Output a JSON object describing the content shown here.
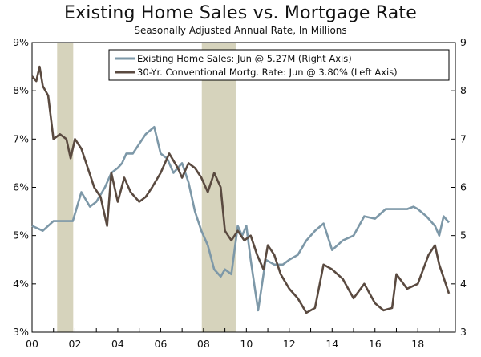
{
  "chart_data": {
    "type": "line",
    "title": "Existing Home Sales vs. Mortgage Rate",
    "subtitle": "Seasonally Adjusted Annual Rate, In Millions",
    "x_tick_labels": [
      "00",
      "02",
      "04",
      "06",
      "08",
      "10",
      "12",
      "14",
      "16",
      "18"
    ],
    "x_range": [
      2000.0,
      2019.75
    ],
    "left_axis": {
      "range": [
        3,
        9
      ],
      "ticks": [
        "3%",
        "4%",
        "5%",
        "6%",
        "7%",
        "8%",
        "9%"
      ]
    },
    "right_axis": {
      "range": [
        3,
        9
      ],
      "ticks": [
        "3",
        "4",
        "5",
        "6",
        "7",
        "8",
        "9"
      ]
    },
    "recessions": [
      [
        2001.17,
        2001.92
      ],
      [
        2007.92,
        2009.5
      ]
    ],
    "series": [
      {
        "name": "Existing Home Sales: Jun @ 5.27M (Right Axis)",
        "axis": "right",
        "color": "#7d98a8",
        "points": [
          [
            2000.0,
            5.2
          ],
          [
            2000.5,
            5.1
          ],
          [
            2001.0,
            5.3
          ],
          [
            2001.5,
            5.3
          ],
          [
            2001.9,
            5.3
          ],
          [
            2002.3,
            5.9
          ],
          [
            2002.7,
            5.6
          ],
          [
            2003.0,
            5.7
          ],
          [
            2003.4,
            6.0
          ],
          [
            2003.7,
            6.3
          ],
          [
            2004.0,
            6.4
          ],
          [
            2004.2,
            6.5
          ],
          [
            2004.4,
            6.7
          ],
          [
            2004.7,
            6.7
          ],
          [
            2005.0,
            6.9
          ],
          [
            2005.3,
            7.1
          ],
          [
            2005.7,
            7.25
          ],
          [
            2006.0,
            6.7
          ],
          [
            2006.3,
            6.6
          ],
          [
            2006.6,
            6.3
          ],
          [
            2007.0,
            6.5
          ],
          [
            2007.3,
            6.1
          ],
          [
            2007.6,
            5.5
          ],
          [
            2007.9,
            5.1
          ],
          [
            2008.2,
            4.8
          ],
          [
            2008.5,
            4.3
          ],
          [
            2008.8,
            4.15
          ],
          [
            2009.0,
            4.3
          ],
          [
            2009.3,
            4.2
          ],
          [
            2009.6,
            5.2
          ],
          [
            2009.8,
            5.0
          ],
          [
            2010.0,
            5.2
          ],
          [
            2010.2,
            4.5
          ],
          [
            2010.4,
            3.9
          ],
          [
            2010.55,
            3.45
          ],
          [
            2010.9,
            4.5
          ],
          [
            2011.3,
            4.4
          ],
          [
            2011.7,
            4.4
          ],
          [
            2012.0,
            4.5
          ],
          [
            2012.4,
            4.6
          ],
          [
            2012.8,
            4.9
          ],
          [
            2013.2,
            5.1
          ],
          [
            2013.6,
            5.25
          ],
          [
            2014.0,
            4.7
          ],
          [
            2014.5,
            4.9
          ],
          [
            2015.0,
            5.0
          ],
          [
            2015.5,
            5.4
          ],
          [
            2016.0,
            5.35
          ],
          [
            2016.5,
            5.55
          ],
          [
            2017.0,
            5.55
          ],
          [
            2017.5,
            5.55
          ],
          [
            2017.8,
            5.6
          ],
          [
            2018.0,
            5.55
          ],
          [
            2018.4,
            5.4
          ],
          [
            2018.8,
            5.2
          ],
          [
            2019.0,
            5.0
          ],
          [
            2019.2,
            5.4
          ],
          [
            2019.45,
            5.27
          ]
        ]
      },
      {
        "name": "30-Yr. Conventional Mortg. Rate: Jun @ 3.80% (Left Axis)",
        "axis": "left",
        "color": "#5a4a40",
        "points": [
          [
            2000.0,
            8.3
          ],
          [
            2000.2,
            8.2
          ],
          [
            2000.35,
            8.5
          ],
          [
            2000.5,
            8.1
          ],
          [
            2000.75,
            7.9
          ],
          [
            2001.0,
            7.0
          ],
          [
            2001.3,
            7.1
          ],
          [
            2001.6,
            7.0
          ],
          [
            2001.8,
            6.6
          ],
          [
            2002.0,
            7.0
          ],
          [
            2002.3,
            6.8
          ],
          [
            2002.6,
            6.4
          ],
          [
            2002.9,
            6.0
          ],
          [
            2003.2,
            5.8
          ],
          [
            2003.5,
            5.2
          ],
          [
            2003.7,
            6.3
          ],
          [
            2004.0,
            5.7
          ],
          [
            2004.3,
            6.2
          ],
          [
            2004.6,
            5.9
          ],
          [
            2005.0,
            5.7
          ],
          [
            2005.3,
            5.8
          ],
          [
            2005.6,
            6.0
          ],
          [
            2006.0,
            6.3
          ],
          [
            2006.4,
            6.7
          ],
          [
            2006.8,
            6.4
          ],
          [
            2007.0,
            6.2
          ],
          [
            2007.3,
            6.5
          ],
          [
            2007.6,
            6.4
          ],
          [
            2007.9,
            6.2
          ],
          [
            2008.2,
            5.9
          ],
          [
            2008.5,
            6.3
          ],
          [
            2008.8,
            6.0
          ],
          [
            2009.0,
            5.1
          ],
          [
            2009.3,
            4.9
          ],
          [
            2009.6,
            5.1
          ],
          [
            2009.9,
            4.9
          ],
          [
            2010.2,
            5.0
          ],
          [
            2010.5,
            4.6
          ],
          [
            2010.8,
            4.3
          ],
          [
            2011.0,
            4.8
          ],
          [
            2011.3,
            4.6
          ],
          [
            2011.6,
            4.2
          ],
          [
            2012.0,
            3.9
          ],
          [
            2012.4,
            3.7
          ],
          [
            2012.8,
            3.4
          ],
          [
            2013.2,
            3.5
          ],
          [
            2013.6,
            4.4
          ],
          [
            2014.0,
            4.3
          ],
          [
            2014.5,
            4.1
          ],
          [
            2015.0,
            3.7
          ],
          [
            2015.5,
            4.0
          ],
          [
            2016.0,
            3.6
          ],
          [
            2016.4,
            3.45
          ],
          [
            2016.8,
            3.5
          ],
          [
            2017.0,
            4.2
          ],
          [
            2017.5,
            3.9
          ],
          [
            2018.0,
            4.0
          ],
          [
            2018.5,
            4.6
          ],
          [
            2018.8,
            4.8
          ],
          [
            2019.0,
            4.4
          ],
          [
            2019.3,
            4.0
          ],
          [
            2019.45,
            3.8
          ]
        ]
      }
    ],
    "legend_placement": "top-right",
    "grid": false
  }
}
